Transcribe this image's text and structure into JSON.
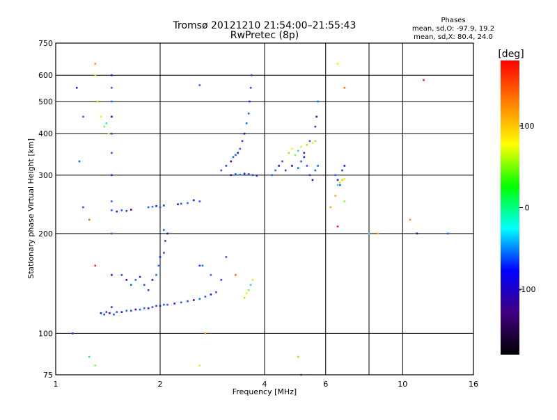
{
  "chart_data": {
    "type": "scatter",
    "title": "Tromsø 20121210 21:54:00–21:55:43",
    "subtitle": "RwPretec (8p)",
    "xlabel": "Frequency [MHz]",
    "ylabel": "Stationary phase Virtual Height [km]",
    "x_scale": "log",
    "y_scale": "log",
    "xlim": [
      1,
      16
    ],
    "ylim": [
      75,
      750
    ],
    "x_ticks": [
      1,
      2,
      4,
      6,
      10,
      16
    ],
    "x_gridlines": [
      2,
      4,
      6,
      8,
      10
    ],
    "y_ticks": [
      75,
      100,
      200,
      300,
      400,
      500,
      600,
      750
    ],
    "grid": true,
    "phase_box": {
      "title": "Phases",
      "line1": "mean, sd,O: -97.9, 19.2",
      "line2": "mean, sd,X:  80.4, 24.0"
    },
    "colorbar": {
      "label": "[deg]",
      "range": [
        -180,
        180
      ],
      "ticks": [
        100,
        0,
        -100
      ],
      "colors": [
        "#ff0000",
        "#ff8000",
        "#ffff00",
        "#00ff00",
        "#00ffff",
        "#0000ff",
        "#400080",
        "#000000"
      ]
    },
    "series": [
      {
        "values": [
          [
            1.35,
            115
          ],
          [
            1.38,
            114
          ],
          [
            1.4,
            116
          ],
          [
            1.43,
            115
          ],
          [
            1.47,
            114
          ],
          [
            1.5,
            116
          ],
          [
            1.55,
            116
          ],
          [
            1.6,
            117
          ],
          [
            1.65,
            117
          ],
          [
            1.7,
            118
          ],
          [
            1.75,
            118
          ],
          [
            1.8,
            119
          ],
          [
            1.85,
            119
          ],
          [
            1.9,
            120
          ],
          [
            1.95,
            121
          ],
          [
            2.0,
            121
          ],
          [
            2.05,
            122
          ],
          [
            2.1,
            122
          ],
          [
            2.2,
            123
          ],
          [
            2.3,
            124
          ],
          [
            2.4,
            125
          ],
          [
            2.5,
            126
          ],
          [
            2.6,
            127
          ],
          [
            2.7,
            129
          ],
          [
            2.8,
            131
          ],
          [
            2.9,
            133
          ],
          [
            1.55,
            150
          ],
          [
            1.6,
            145
          ],
          [
            1.65,
            140
          ],
          [
            1.7,
            145
          ],
          [
            1.75,
            148
          ],
          [
            1.8,
            140
          ],
          [
            1.85,
            135
          ],
          [
            1.9,
            145
          ],
          [
            1.95,
            150
          ],
          [
            1.98,
            160
          ],
          [
            2.0,
            170
          ],
          [
            2.05,
            175
          ],
          [
            2.07,
            190
          ],
          [
            2.1,
            200
          ],
          [
            2.05,
            205
          ],
          [
            1.45,
            235
          ],
          [
            1.5,
            233
          ],
          [
            1.55,
            235
          ],
          [
            1.6,
            234
          ],
          [
            1.65,
            236
          ],
          [
            1.85,
            240
          ],
          [
            1.9,
            241
          ],
          [
            1.95,
            242
          ],
          [
            2.0,
            240
          ],
          [
            2.05,
            243
          ],
          [
            2.25,
            245
          ],
          [
            2.3,
            246
          ],
          [
            2.4,
            247
          ],
          [
            2.5,
            252
          ],
          [
            2.6,
            250
          ],
          [
            1.45,
            120
          ],
          [
            1.45,
            150
          ],
          [
            1.45,
            200
          ],
          [
            1.45,
            250
          ],
          [
            1.45,
            300
          ],
          [
            1.45,
            350
          ],
          [
            1.45,
            400
          ],
          [
            1.45,
            450
          ],
          [
            1.45,
            500
          ],
          [
            1.45,
            550
          ],
          [
            1.45,
            600
          ],
          [
            3.0,
            310
          ],
          [
            3.1,
            320
          ],
          [
            3.2,
            330
          ],
          [
            3.25,
            340
          ],
          [
            3.3,
            345
          ],
          [
            3.35,
            350
          ],
          [
            3.4,
            360
          ],
          [
            3.45,
            380
          ],
          [
            3.5,
            400
          ],
          [
            3.55,
            430
          ],
          [
            3.6,
            460
          ],
          [
            3.62,
            500
          ],
          [
            3.65,
            550
          ],
          [
            3.67,
            600
          ],
          [
            3.2,
            300
          ],
          [
            3.3,
            302
          ],
          [
            3.4,
            301
          ],
          [
            3.5,
            303
          ],
          [
            3.6,
            302
          ],
          [
            3.7,
            300
          ],
          [
            3.8,
            299
          ],
          [
            4.2,
            300
          ],
          [
            4.3,
            310
          ],
          [
            4.4,
            320
          ],
          [
            4.5,
            330
          ],
          [
            4.6,
            310
          ],
          [
            4.8,
            320
          ],
          [
            5.0,
            315
          ],
          [
            5.1,
            330
          ],
          [
            5.2,
            340
          ],
          [
            5.3,
            320
          ],
          [
            5.4,
            300
          ],
          [
            5.5,
            290
          ],
          [
            5.6,
            310
          ],
          [
            5.7,
            320
          ],
          [
            5.2,
            350
          ],
          [
            5.4,
            380
          ],
          [
            5.6,
            420
          ],
          [
            5.65,
            450
          ],
          [
            5.7,
            500
          ],
          [
            6.4,
            300
          ],
          [
            6.5,
            290
          ],
          [
            6.6,
            280
          ],
          [
            6.7,
            310
          ],
          [
            6.8,
            320
          ],
          [
            1.17,
            330
          ],
          [
            1.2,
            450
          ],
          [
            1.15,
            550
          ],
          [
            1.2,
            240
          ],
          [
            1.12,
            100
          ],
          [
            11,
            200
          ],
          [
            13.5,
            200
          ],
          [
            2.6,
            560
          ],
          [
            2.6,
            160
          ],
          [
            3.1,
            170
          ],
          [
            3.0,
            145
          ],
          [
            3.6,
            135
          ],
          [
            2.65,
            160
          ],
          [
            2.8,
            150
          ]
        ]
      },
      {
        "values": [
          [
            1.3,
            600
          ],
          [
            1.32,
            500
          ],
          [
            1.35,
            450
          ],
          [
            1.38,
            420
          ],
          [
            1.4,
            430
          ],
          [
            1.42,
            400
          ],
          [
            3.5,
            128
          ],
          [
            3.55,
            132
          ],
          [
            3.6,
            135
          ],
          [
            3.65,
            140
          ],
          [
            3.7,
            145
          ],
          [
            4.7,
            350
          ],
          [
            4.8,
            360
          ],
          [
            4.9,
            345
          ],
          [
            5.0,
            355
          ],
          [
            5.1,
            365
          ],
          [
            5.3,
            370
          ],
          [
            5.5,
            375
          ],
          [
            5.6,
            380
          ],
          [
            6.5,
            280
          ],
          [
            6.6,
            285
          ],
          [
            6.7,
            290
          ],
          [
            6.8,
            292
          ],
          [
            1.3,
            80
          ],
          [
            1.25,
            85
          ],
          [
            2.6,
            80
          ],
          [
            5.0,
            85
          ],
          [
            6.5,
            650
          ],
          [
            6.8,
            250
          ],
          [
            8.0,
            200
          ]
        ]
      },
      {
        "values": [
          [
            1.25,
            220
          ],
          [
            1.3,
            160
          ],
          [
            2.7,
            100
          ],
          [
            6.4,
            260
          ],
          [
            6.8,
            550
          ],
          [
            11.5,
            580
          ],
          [
            10.5,
            220
          ],
          [
            6.2,
            240
          ],
          [
            5.1,
            75
          ],
          [
            6.5,
            210
          ],
          [
            1.3,
            650
          ],
          [
            8.5,
            200
          ],
          [
            3.3,
            150
          ]
        ]
      }
    ]
  }
}
